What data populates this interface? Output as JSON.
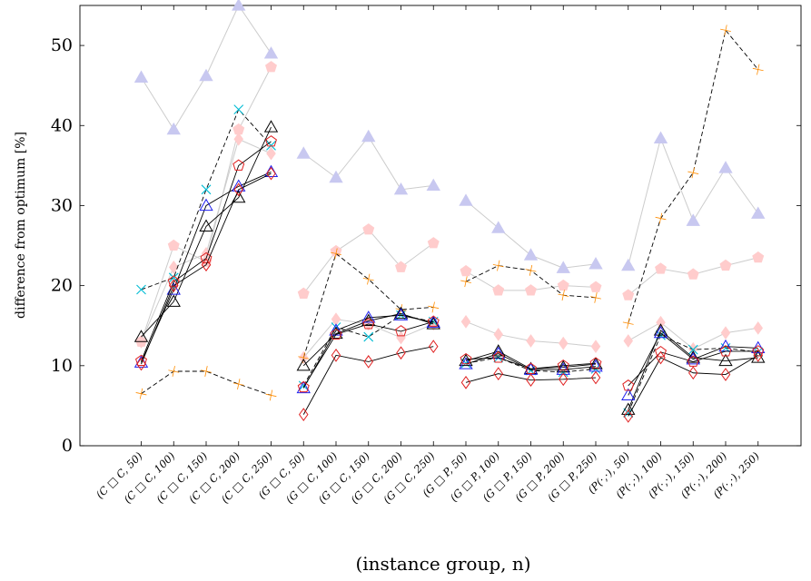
{
  "chart_data": {
    "type": "line",
    "title": "",
    "xlabel": "(instance group, n)",
    "ylabel": "difference from optimum [%]",
    "ylim": [
      0,
      55
    ],
    "yticks": [
      0,
      10,
      20,
      30,
      40,
      50
    ],
    "grid": false,
    "legend": "none",
    "groups": [
      [
        "(C □ C, 50)",
        "(C □ C, 100)",
        "(C □ C, 150)",
        "(C □ C, 200)",
        "(C □ C, 250)"
      ],
      [
        "(G □ C, 50)",
        "(G □ C, 100)",
        "(G □ C, 150)",
        "(G □ C, 200)",
        "(G □ C, 250)"
      ],
      [
        "(G □ P, 50)",
        "(G □ P, 100)",
        "(G □ P, 150)",
        "(G □ P, 200)",
        "(G □ P, 250)"
      ],
      [
        "(P(·,·), 50)",
        "(P(·,·), 100)",
        "(P(·,·), 150)",
        "(P(·,·), 200)",
        "(P(·,·), 250)"
      ]
    ],
    "series": [
      {
        "marker": "triangle-filled",
        "color": "#c8c8f0",
        "line": "#cccccc",
        "dash": false,
        "values": [
          [
            46,
            39.5,
            46.2,
            55,
            49
          ],
          [
            36.5,
            33.5,
            38.6,
            32,
            32.5
          ],
          [
            30.6,
            27.2,
            23.8,
            22.2,
            22.7
          ],
          [
            22.5,
            38.4,
            28.1,
            34.7,
            29
          ]
        ]
      },
      {
        "marker": "pentagon-filled",
        "color": "#ffcccc",
        "line": "#cccccc",
        "dash": false,
        "values": [
          [
            13,
            25,
            23,
            39.5,
            47.3
          ],
          [
            19,
            24.3,
            27,
            22.3,
            25.3
          ],
          [
            21.8,
            19.4,
            19.4,
            20,
            19.8
          ],
          [
            18.8,
            22.1,
            21.4,
            22.5,
            23.5
          ]
        ]
      },
      {
        "marker": "diamond-filled",
        "color": "#ffcccc",
        "line": "#cccccc",
        "dash": false,
        "values": [
          [
            13,
            22.3,
            24,
            38.3,
            36.5
          ],
          [
            11,
            15.8,
            15.2,
            13.5,
            15.2
          ],
          [
            15.5,
            13.9,
            13.1,
            12.8,
            12.4
          ],
          [
            13.1,
            15.4,
            12.1,
            14.1,
            14.7
          ]
        ]
      },
      {
        "marker": "x-cross",
        "color": "#00bcd4",
        "line": "#000000",
        "dash": true,
        "values": [
          [
            19.5,
            21,
            32,
            42,
            37.5
          ],
          [
            7.5,
            14.8,
            13.6,
            16.3,
            15.5
          ],
          [
            10.3,
            11,
            9.4,
            9.2,
            9.6
          ],
          [
            4.1,
            13.8,
            12,
            12.2,
            11.7
          ]
        ]
      },
      {
        "marker": "plus",
        "color": "#ff8c00",
        "line": "#000000",
        "dash": true,
        "values": [
          [
            6.5,
            9.3,
            9.3,
            7.7,
            6.3
          ],
          [
            11,
            24,
            20.8,
            17,
            17.3
          ],
          [
            20.5,
            22.5,
            21.9,
            18.8,
            18.5
          ],
          [
            15.3,
            28.4,
            34.1,
            51.9,
            47
          ]
        ]
      },
      {
        "marker": "triangle-open",
        "color": "#000000",
        "line": "#000000",
        "dash": false,
        "values": [
          [
            13.6,
            18,
            27.4,
            31,
            39.8
          ],
          [
            10,
            14,
            15.6,
            16.5,
            15.2
          ],
          [
            10.6,
            11.8,
            9.6,
            9.8,
            10.2
          ],
          [
            4.5,
            14.4,
            11,
            10.6,
            11
          ]
        ]
      },
      {
        "marker": "triangle-open",
        "color": "#2020ee",
        "line": "#000000",
        "dash": false,
        "values": [
          [
            10.4,
            19.5,
            30,
            32.4,
            34.2
          ],
          [
            7.2,
            14.4,
            16,
            16.3,
            15.4
          ],
          [
            10.2,
            11.5,
            9.5,
            9.5,
            9.9
          ],
          [
            6.3,
            14.1,
            10.8,
            12.4,
            12.2
          ]
        ]
      },
      {
        "marker": "pentagon-open",
        "color": "#e02020",
        "line": "#000000",
        "dash": false,
        "values": [
          [
            10.6,
            20.5,
            23.4,
            35,
            38
          ],
          [
            7.3,
            13.9,
            15.2,
            14.3,
            15.5
          ],
          [
            10.8,
            11,
            9.6,
            10,
            10.3
          ],
          [
            7.5,
            11.7,
            10.5,
            11.8,
            11.8
          ]
        ]
      },
      {
        "marker": "diamond-open",
        "color": "#e02020",
        "line": "#000000",
        "dash": false,
        "values": [
          [
            10.2,
            20,
            22.6,
            32,
            34
          ],
          [
            3.9,
            11.3,
            10.5,
            11.6,
            12.4
          ],
          [
            7.9,
            9,
            8.2,
            8.3,
            8.5
          ],
          [
            3.7,
            11,
            9.1,
            8.9,
            11.3
          ]
        ]
      }
    ]
  }
}
